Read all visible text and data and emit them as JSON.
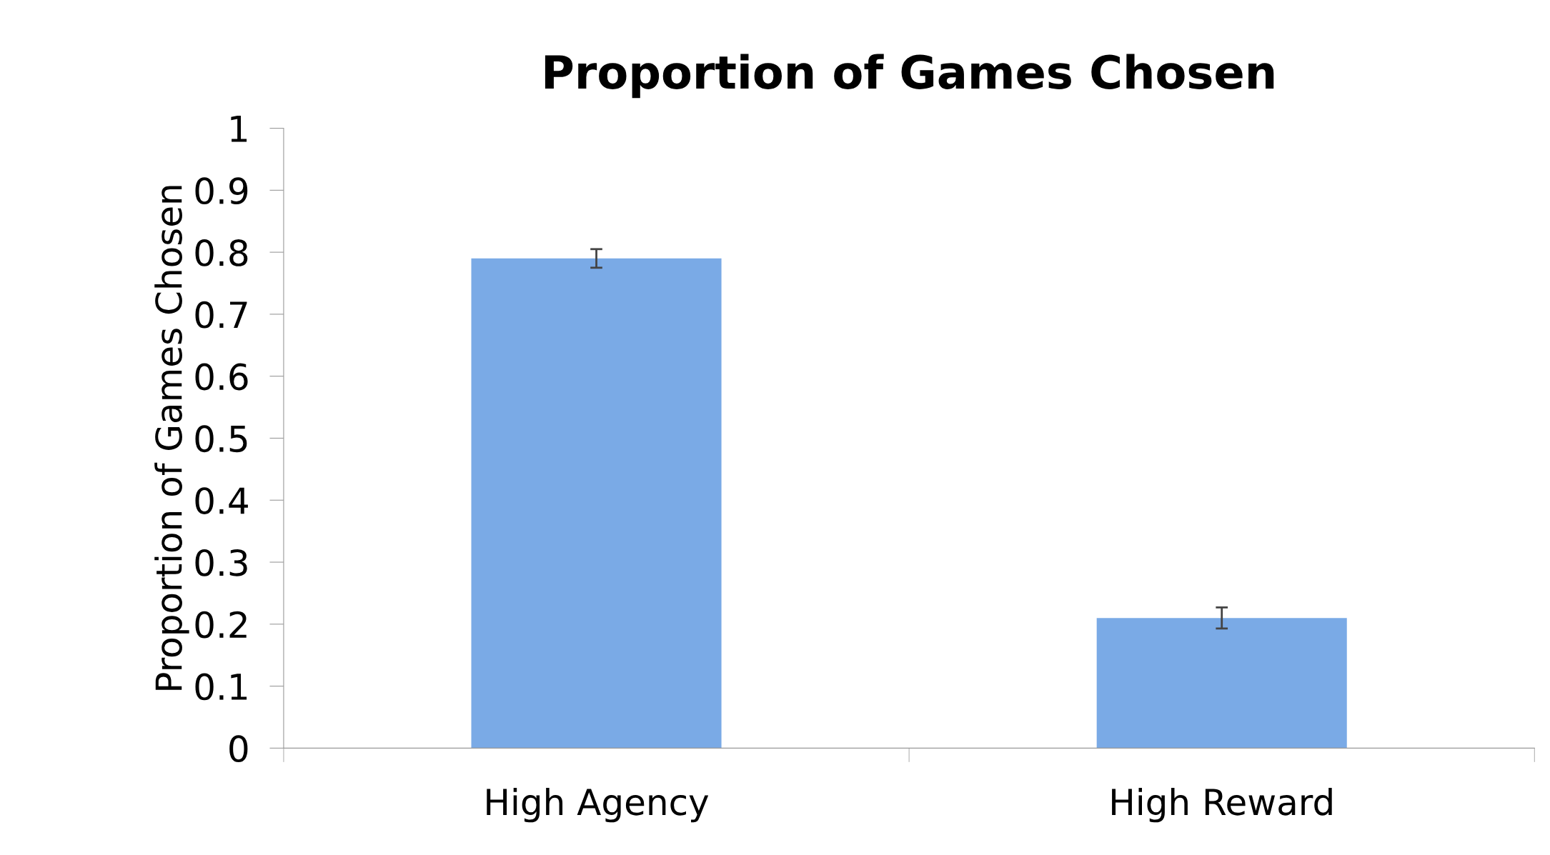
{
  "chart_data": {
    "type": "bar",
    "title": "Proportion of Games Chosen",
    "ylabel": "Proportion of Games Chosen",
    "categories": [
      "High Agency",
      "High Reward"
    ],
    "values": [
      0.79,
      0.21
    ],
    "errors": [
      0.015,
      0.017
    ],
    "color": "#7aaae6",
    "ylim": [
      0,
      1
    ],
    "yticks": [
      0,
      0.1,
      0.2,
      0.3,
      0.4,
      0.5,
      0.6,
      0.7,
      0.8,
      0.9,
      1
    ],
    "grid": false,
    "legend": false
  }
}
